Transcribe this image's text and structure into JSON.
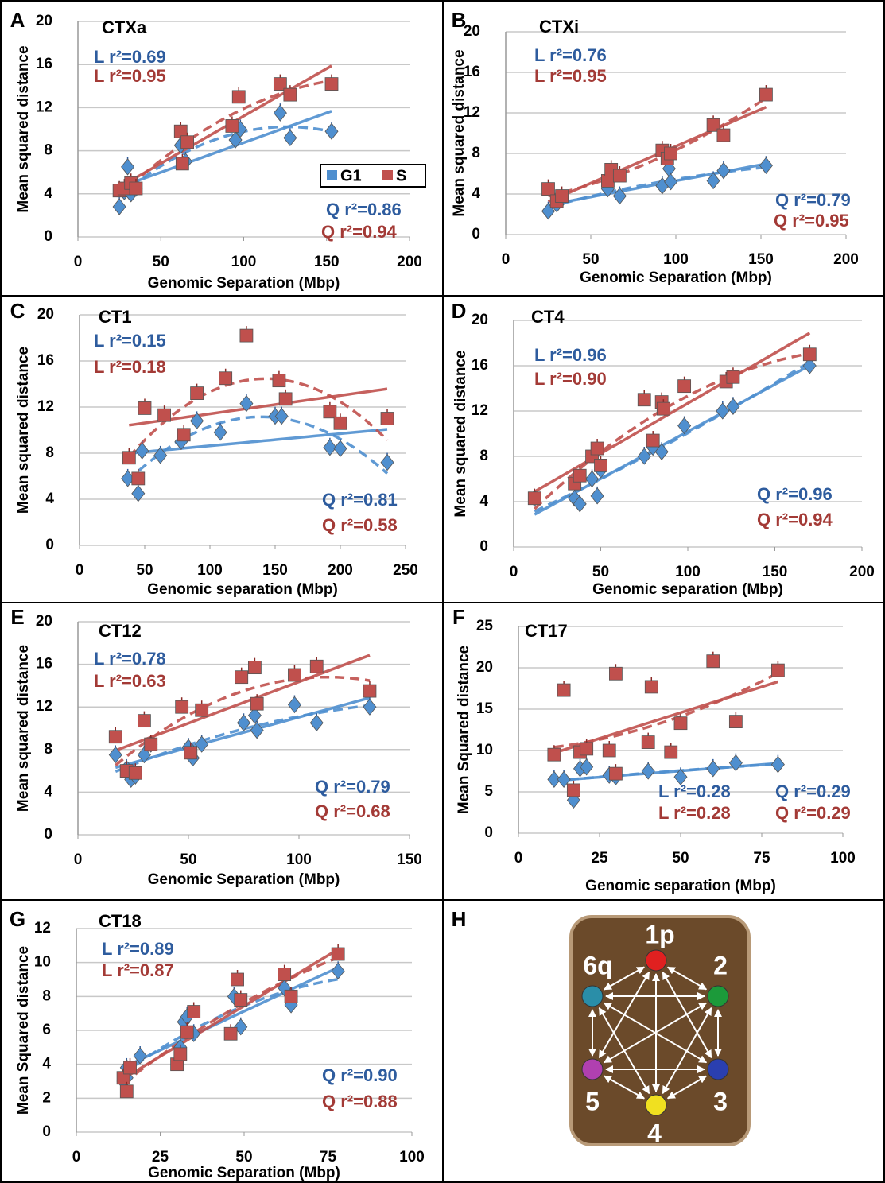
{
  "chart_data": [
    {
      "panel": "A",
      "type": "scatter",
      "title": "CTXa",
      "x_label": "Genomic Separation (Mbp)",
      "y_label": "Mean squared distance",
      "xlim": [
        0,
        200
      ],
      "ylim": [
        0,
        20
      ],
      "xticks": [
        0,
        50,
        100,
        150,
        200
      ],
      "yticks": [
        0,
        4,
        8,
        12,
        16,
        20
      ],
      "grid": true,
      "legend": "center-right",
      "series": [
        {
          "name": "G1",
          "color": "#4f8fcf",
          "marker": "diamond",
          "x": [
            25,
            28,
            30,
            32,
            35,
            62,
            65,
            95,
            98,
            122,
            128,
            153
          ],
          "values": [
            2.8,
            4.2,
            6.5,
            4,
            4.5,
            8.5,
            7,
            9,
            10,
            11.5,
            9.2,
            9.8
          ]
        },
        {
          "name": "S",
          "color": "#c0504d",
          "marker": "square",
          "x": [
            25,
            28,
            32,
            35,
            62,
            63,
            66,
            93,
            97,
            122,
            128,
            153
          ],
          "values": [
            4.3,
            4.5,
            5,
            4.5,
            9.8,
            6.8,
            8.8,
            10.3,
            13,
            14.2,
            13.2,
            14.2
          ]
        }
      ],
      "annotations": [
        {
          "text": "L r²=0.69",
          "color": "#2e5c9e"
        },
        {
          "text": "L r²=0.95",
          "color": "#a33a36"
        },
        {
          "text": "Q r²=0.86",
          "color": "#2e5c9e"
        },
        {
          "text": "Q r²=0.94",
          "color": "#a33a36"
        }
      ]
    },
    {
      "panel": "B",
      "type": "scatter",
      "title": "CTXi",
      "x_label": "Genomic Separation (Mbp)",
      "y_label": "Mean squared distance",
      "xlim": [
        0,
        200
      ],
      "ylim": [
        0,
        20
      ],
      "xticks": [
        0,
        50,
        100,
        150,
        200
      ],
      "yticks": [
        0,
        4,
        8,
        12,
        16,
        20
      ],
      "grid": true,
      "series": [
        {
          "color": "#4f8fcf",
          "marker": "diamond",
          "x": [
            25,
            30,
            33,
            60,
            67,
            92,
            96,
            97,
            122,
            128,
            153
          ],
          "values": [
            2.3,
            3,
            3.5,
            4.5,
            3.8,
            4.8,
            6.5,
            5.2,
            5.3,
            6.3,
            6.8
          ]
        },
        {
          "color": "#c0504d",
          "marker": "square",
          "x": [
            25,
            30,
            33,
            60,
            62,
            67,
            92,
            95,
            97,
            122,
            128,
            153
          ],
          "values": [
            4.5,
            3.3,
            3.8,
            5.3,
            6.4,
            5.8,
            8.3,
            7.5,
            8,
            10.8,
            9.8,
            13.8
          ]
        }
      ],
      "annotations": [
        {
          "text": "L r²=0.76",
          "color": "#2e5c9e"
        },
        {
          "text": "L r²=0.95",
          "color": "#a33a36"
        },
        {
          "text": "Q r²=0.79",
          "color": "#2e5c9e"
        },
        {
          "text": "Q r²=0.95",
          "color": "#a33a36"
        }
      ]
    },
    {
      "panel": "C",
      "type": "scatter",
      "title": "CT1",
      "x_label": "Genomic separation (Mbp)",
      "y_label": "Mean squared distance",
      "xlim": [
        0,
        250
      ],
      "ylim": [
        0,
        20
      ],
      "xticks": [
        0,
        50,
        100,
        150,
        200,
        250
      ],
      "yticks": [
        0,
        4,
        8,
        12,
        16,
        20
      ],
      "grid": true,
      "series": [
        {
          "color": "#4f8fcf",
          "marker": "diamond",
          "x": [
            37,
            45,
            48,
            62,
            78,
            90,
            108,
            128,
            150,
            155,
            192,
            200,
            236
          ],
          "values": [
            5.8,
            4.5,
            8.2,
            7.8,
            9,
            10.8,
            9.8,
            12.3,
            11.2,
            11.2,
            8.5,
            8.4,
            7.2
          ]
        },
        {
          "color": "#c0504d",
          "marker": "square",
          "x": [
            38,
            45,
            50,
            65,
            80,
            90,
            112,
            128,
            153,
            158,
            192,
            200,
            236
          ],
          "values": [
            7.6,
            5.8,
            11.9,
            11.3,
            9.6,
            13.2,
            14.5,
            18.2,
            14.3,
            12.7,
            11.6,
            10.6,
            11
          ]
        }
      ],
      "annotations": [
        {
          "text": "L r²=0.15",
          "color": "#2e5c9e"
        },
        {
          "text": "L r²=0.18",
          "color": "#a33a36"
        },
        {
          "text": "Q r²=0.81",
          "color": "#2e5c9e"
        },
        {
          "text": "Q r²=0.58",
          "color": "#a33a36"
        }
      ]
    },
    {
      "panel": "D",
      "type": "scatter",
      "title": "CT4",
      "x_label": "Genomic separation (Mbp)",
      "y_label": "Mean squared distance",
      "xlim": [
        0,
        200
      ],
      "ylim": [
        0,
        20
      ],
      "xticks": [
        0,
        50,
        100,
        150,
        200
      ],
      "yticks": [
        0,
        4,
        8,
        12,
        16,
        20
      ],
      "grid": true,
      "series": [
        {
          "color": "#4f8fcf",
          "marker": "diamond",
          "x": [
            12,
            35,
            38,
            45,
            48,
            50,
            75,
            80,
            85,
            98,
            120,
            126,
            170
          ],
          "values": [
            4.3,
            4.3,
            3.8,
            6,
            4.5,
            6.8,
            8,
            8.8,
            8.4,
            10.7,
            12,
            12.4,
            16
          ]
        },
        {
          "color": "#c0504d",
          "marker": "square",
          "x": [
            12,
            35,
            38,
            45,
            48,
            50,
            75,
            80,
            85,
            86,
            98,
            122,
            126,
            170
          ],
          "values": [
            4.3,
            5.6,
            6.3,
            8,
            8.7,
            7.2,
            13,
            9.4,
            12.8,
            12.2,
            14.2,
            14.6,
            15,
            17
          ]
        }
      ],
      "annotations": [
        {
          "text": "L r²=0.96",
          "color": "#2e5c9e"
        },
        {
          "text": "L r²=0.90",
          "color": "#a33a36"
        },
        {
          "text": "Q r²=0.96",
          "color": "#2e5c9e"
        },
        {
          "text": "Q r²=0.94",
          "color": "#a33a36"
        }
      ]
    },
    {
      "panel": "E",
      "type": "scatter",
      "title": "CT12",
      "x_label": "Genomic Separation (Mbp)",
      "y_label": "Mean squared distance",
      "xlim": [
        0,
        150
      ],
      "ylim": [
        0,
        20
      ],
      "xticks": [
        0,
        50,
        100,
        150
      ],
      "yticks": [
        0,
        4,
        8,
        12,
        16,
        20
      ],
      "grid": true,
      "series": [
        {
          "color": "#4f8fcf",
          "marker": "diamond",
          "x": [
            17,
            22,
            24,
            26,
            30,
            33,
            50,
            52,
            56,
            75,
            80,
            81,
            98,
            108,
            132
          ],
          "values": [
            7.5,
            6.2,
            5.2,
            5.5,
            7.5,
            8.5,
            8.2,
            7.2,
            8.5,
            10.5,
            11.2,
            9.8,
            12.2,
            10.5,
            12
          ]
        },
        {
          "color": "#c0504d",
          "marker": "square",
          "x": [
            17,
            22,
            26,
            30,
            33,
            47,
            51,
            56,
            74,
            80,
            81,
            98,
            108,
            132
          ],
          "values": [
            9.2,
            6,
            5.8,
            10.7,
            8.5,
            12,
            7.7,
            11.7,
            14.8,
            15.7,
            12.3,
            15,
            15.8,
            13.5
          ]
        }
      ],
      "annotations": [
        {
          "text": "L r²=0.78",
          "color": "#2e5c9e"
        },
        {
          "text": "L r²=0.63",
          "color": "#a33a36"
        },
        {
          "text": "Q r²=0.79",
          "color": "#2e5c9e"
        },
        {
          "text": "Q r²=0.68",
          "color": "#a33a36"
        }
      ]
    },
    {
      "panel": "F",
      "type": "scatter",
      "title": "CT17",
      "x_label": "Genomic separation (Mbp)",
      "y_label": "Mean Squared distance",
      "xlim": [
        0,
        100
      ],
      "ylim": [
        0,
        25
      ],
      "xticks": [
        0,
        25,
        50,
        75,
        100
      ],
      "yticks": [
        0,
        5,
        10,
        15,
        20,
        25
      ],
      "grid": true,
      "series": [
        {
          "color": "#4f8fcf",
          "marker": "diamond",
          "x": [
            11,
            14,
            17,
            19,
            21,
            28,
            30,
            40,
            50,
            60,
            67,
            80
          ],
          "values": [
            6.5,
            6.5,
            4,
            7.8,
            8,
            7,
            6.8,
            7.5,
            6.8,
            7.8,
            8.5,
            8.3
          ]
        },
        {
          "color": "#c0504d",
          "marker": "square",
          "x": [
            11,
            14,
            17,
            19,
            21,
            28,
            30,
            30,
            40,
            41,
            47,
            50,
            60,
            67,
            80
          ],
          "values": [
            9.5,
            17.3,
            5.2,
            9.8,
            10.2,
            10,
            7.2,
            19.3,
            11,
            17.7,
            9.8,
            13.3,
            20.8,
            13.5,
            19.7
          ]
        }
      ],
      "annotations": [
        {
          "text": "L r²=0.28",
          "color": "#2e5c9e"
        },
        {
          "text": "L r²=0.28",
          "color": "#a33a36"
        },
        {
          "text": "Q r²=0.29",
          "color": "#2e5c9e"
        },
        {
          "text": "Q r²=0.29",
          "color": "#a33a36"
        }
      ]
    },
    {
      "panel": "G",
      "type": "scatter",
      "title": "CT18",
      "x_label": "Genomic Separation (Mbp)",
      "y_label": "Mean Squared distance",
      "xlim": [
        0,
        100
      ],
      "ylim": [
        0,
        12
      ],
      "xticks": [
        0,
        25,
        50,
        75,
        100
      ],
      "yticks": [
        0,
        2,
        4,
        6,
        8,
        10,
        12
      ],
      "grid": true,
      "series": [
        {
          "color": "#4f8fcf",
          "marker": "diamond",
          "x": [
            14,
            15,
            15,
            19,
            31,
            32,
            33,
            35,
            47,
            49,
            62,
            64,
            78
          ],
          "values": [
            3,
            3.8,
            3.2,
            4.5,
            5,
            6.5,
            6.8,
            5.8,
            8,
            6.2,
            8.5,
            7.5,
            9.5
          ]
        },
        {
          "color": "#c0504d",
          "marker": "square",
          "x": [
            14,
            15,
            16,
            30,
            31,
            33,
            35,
            46,
            48,
            49,
            62,
            64,
            78
          ],
          "values": [
            3.2,
            2.4,
            3.8,
            4,
            4.6,
            5.9,
            7.1,
            5.8,
            9,
            7.8,
            9.3,
            8,
            10.5
          ]
        }
      ],
      "annotations": [
        {
          "text": "L r²=0.89",
          "color": "#2e5c9e"
        },
        {
          "text": "L r²=0.87",
          "color": "#a33a36"
        },
        {
          "text": "Q r²=0.90",
          "color": "#2e5c9e"
        },
        {
          "text": "Q r²=0.88",
          "color": "#a33a36"
        }
      ]
    }
  ],
  "diagram": {
    "panel": "H",
    "nodes": [
      {
        "label": "1p",
        "color": "#e02020"
      },
      {
        "label": "2",
        "color": "#1c9a3a"
      },
      {
        "label": "3",
        "color": "#2a3fb0"
      },
      {
        "label": "4",
        "color": "#f0e020"
      },
      {
        "label": "5",
        "color": "#b040b0"
      },
      {
        "label": "6q",
        "color": "#2a8ea8"
      }
    ]
  }
}
